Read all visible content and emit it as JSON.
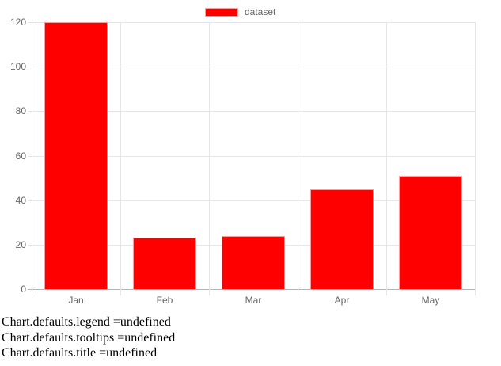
{
  "legend": {
    "label": "dataset"
  },
  "chart_data": {
    "type": "bar",
    "title": "",
    "xlabel": "",
    "ylabel": "",
    "categories": [
      "Jan",
      "Feb",
      "Mar",
      "Apr",
      "May"
    ],
    "series": [
      {
        "name": "dataset",
        "color": "#ff0000",
        "values": [
          120,
          23,
          24,
          45,
          51
        ]
      }
    ],
    "ylim": [
      0,
      120
    ],
    "yticks": [
      0,
      20,
      40,
      60,
      80,
      100,
      120
    ],
    "grid": true,
    "legend_position": "top-center"
  },
  "colors": {
    "bar_fill": "#ff0000",
    "bar_border": "#ff9c9c",
    "grid": "#e6e6e6",
    "axis": "#b5b5b5",
    "tick_text": "#666666",
    "console_text": "#000000"
  },
  "console": {
    "lines": [
      "Chart.defaults.legend =undefined",
      "Chart.defaults.tooltips =undefined",
      "Chart.defaults.title =undefined"
    ]
  }
}
